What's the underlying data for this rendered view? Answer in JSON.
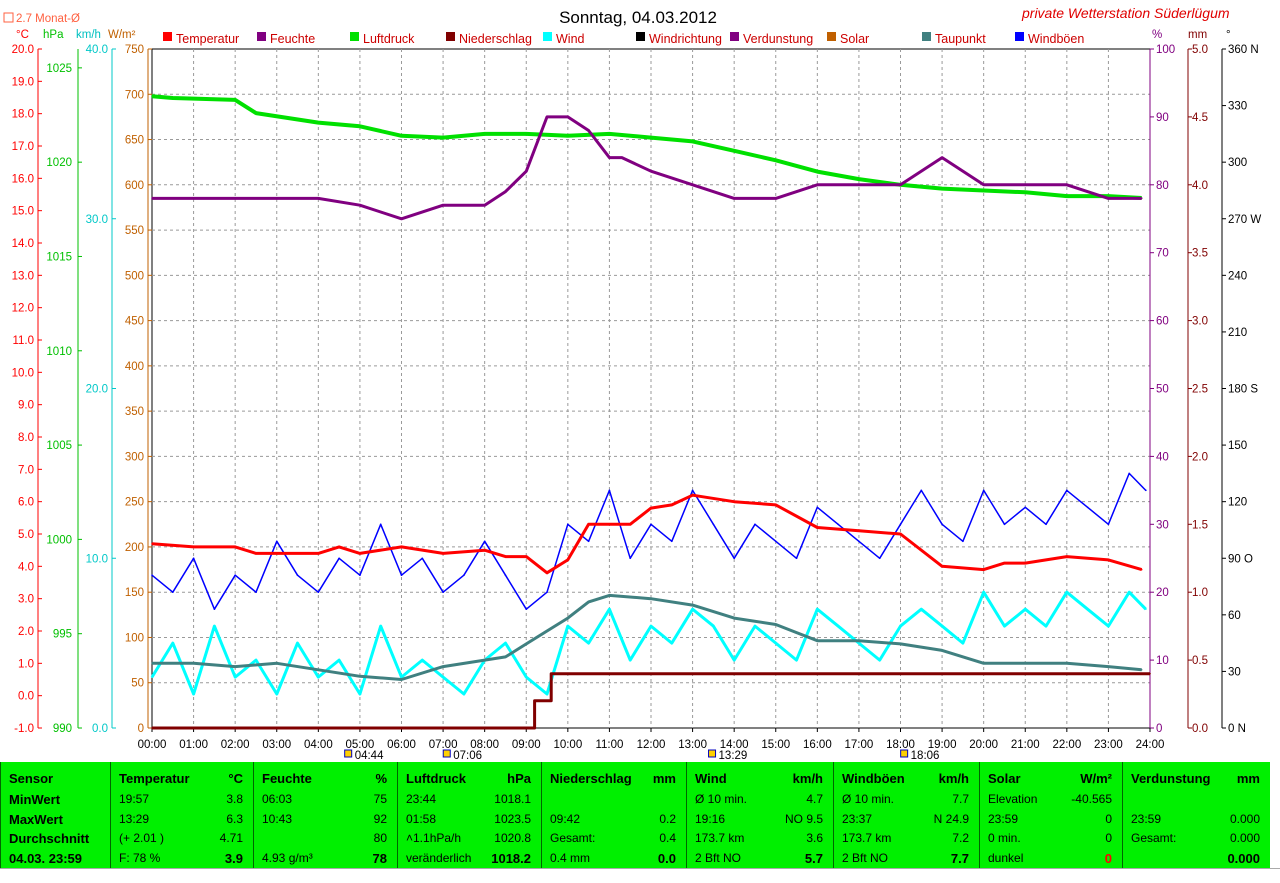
{
  "header": {
    "title": "Sonntag, 04.03.2012",
    "brand": "private Wetterstation Süderlügum",
    "month_avg": "2.7 Monat-Ø"
  },
  "axis_units": {
    "temp": "°C",
    "pressure": "hPa",
    "wind": "km/h",
    "solar": "W/m²",
    "humidity": "%",
    "rain": "mm",
    "direction": "°"
  },
  "legend": [
    {
      "label": "Temperatur",
      "color": "#ff0000"
    },
    {
      "label": "Feuchte",
      "color": "#800080"
    },
    {
      "label": "Luftdruck",
      "color": "#00e000"
    },
    {
      "label": "Niederschlag",
      "color": "#800000"
    },
    {
      "label": "Wind",
      "color": "#00ffff"
    },
    {
      "label": "Windrichtung",
      "color": "#000000"
    },
    {
      "label": "Verdunstung",
      "color": "#800080"
    },
    {
      "label": "Solar",
      "color": "#c06000"
    },
    {
      "label": "Taupunkt",
      "color": "#408080"
    },
    {
      "label": "Windböen",
      "color": "#0000ff"
    }
  ],
  "axes": {
    "temp_ticks": [
      "20.0",
      "19.0",
      "18.0",
      "17.0",
      "16.0",
      "15.0",
      "14.0",
      "13.0",
      "12.0",
      "11.0",
      "10.0",
      "9.0",
      "8.0",
      "7.0",
      "6.0",
      "5.0",
      "4.0",
      "3.0",
      "2.0",
      "1.0",
      "0.0",
      "-1.0"
    ],
    "pressure_ticks": [
      "1025",
      "1020",
      "1015",
      "1010",
      "1005",
      "1000",
      "995",
      "990"
    ],
    "wind_ticks": [
      "40.0",
      "30.0",
      "20.0",
      "10.0",
      "0.0"
    ],
    "solar_ticks": [
      "750",
      "700",
      "650",
      "600",
      "550",
      "500",
      "450",
      "400",
      "350",
      "300",
      "250",
      "200",
      "150",
      "100",
      "50",
      "0"
    ],
    "humidity_ticks": [
      "100",
      "90",
      "80",
      "70",
      "60",
      "50",
      "40",
      "30",
      "20",
      "10",
      "0"
    ],
    "rain_ticks": [
      "5.0",
      "4.5",
      "4.0",
      "3.5",
      "3.0",
      "2.5",
      "2.0",
      "1.5",
      "1.0",
      "0.5",
      "0.0"
    ],
    "direction_ticks": [
      "360 N",
      "330",
      "300",
      "270 W",
      "240",
      "210",
      "180 S",
      "150",
      "120",
      "90 O",
      "60",
      "30",
      "0   N"
    ],
    "time_ticks": [
      "00:00",
      "01:00",
      "02:00",
      "03:00",
      "04:00",
      "05:00",
      "06:00",
      "07:00",
      "08:00",
      "09:00",
      "10:00",
      "11:00",
      "12:00",
      "13:00",
      "14:00",
      "15:00",
      "16:00",
      "17:00",
      "18:00",
      "19:00",
      "20:00",
      "21:00",
      "22:00",
      "23:00",
      "24:00"
    ],
    "events": [
      {
        "label": "04:44",
        "hour": 4.73
      },
      {
        "label": "07:06",
        "hour": 7.1
      },
      {
        "label": "13:29",
        "hour": 13.48
      },
      {
        "label": "18:06",
        "hour": 18.1
      }
    ]
  },
  "chart_data": {
    "type": "line",
    "x_unit": "hour",
    "series": [
      {
        "name": "Temperatur",
        "unit": "°C",
        "color": "#ff0000",
        "x": [
          0,
          1,
          2,
          2.5,
          3,
          4,
          4.5,
          5,
          6,
          7,
          8,
          8.5,
          9,
          9.5,
          10,
          10.5,
          11,
          11.5,
          12,
          12.5,
          13,
          14,
          15,
          16,
          17,
          18,
          19,
          20,
          20.5,
          21,
          22,
          23,
          23.8
        ],
        "y": [
          4.7,
          4.6,
          4.6,
          4.4,
          4.4,
          4.4,
          4.6,
          4.4,
          4.6,
          4.4,
          4.5,
          4.3,
          4.3,
          3.8,
          4.2,
          5.3,
          5.3,
          5.3,
          5.8,
          5.9,
          6.2,
          6.0,
          5.9,
          5.2,
          5.1,
          5.0,
          4.0,
          3.9,
          4.1,
          4.1,
          4.3,
          4.2,
          3.9
        ]
      },
      {
        "name": "Feuchte",
        "unit": "%",
        "color": "#800080",
        "x": [
          0,
          1,
          2,
          3,
          4,
          5,
          5.5,
          6,
          7,
          8,
          8.5,
          9,
          9.5,
          10,
          10.5,
          11,
          11.3,
          12,
          13,
          14,
          15,
          16,
          17,
          18,
          19,
          20,
          21,
          22,
          23,
          23.8
        ],
        "y": [
          78,
          78,
          78,
          78,
          78,
          77,
          76,
          75,
          77,
          77,
          79,
          82,
          90,
          90,
          88,
          84,
          84,
          82,
          80,
          78,
          78,
          80,
          80,
          80,
          84,
          80,
          80,
          80,
          78,
          78
        ]
      },
      {
        "name": "Luftdruck",
        "unit": "hPa",
        "color": "#00e000",
        "x": [
          0,
          0.5,
          2,
          2.5,
          4,
          5,
          6,
          7,
          8,
          9,
          10,
          11,
          12,
          13,
          14,
          15,
          16,
          17,
          18,
          19,
          20,
          21,
          22,
          23,
          23.8
        ],
        "y": [
          1023.5,
          1023.4,
          1023.3,
          1022.6,
          1022.1,
          1021.9,
          1021.4,
          1021.3,
          1021.5,
          1021.5,
          1021.4,
          1021.5,
          1021.3,
          1021.1,
          1020.6,
          1020.1,
          1019.5,
          1019.1,
          1018.8,
          1018.6,
          1018.5,
          1018.4,
          1018.2,
          1018.2,
          1018.1
        ]
      },
      {
        "name": "Taupunkt",
        "unit": "°C",
        "color": "#408080",
        "x": [
          0,
          1,
          2,
          3,
          4,
          5,
          6,
          7,
          8,
          8.5,
          9,
          9.5,
          10,
          10.5,
          11,
          12,
          13,
          14,
          15,
          16,
          17,
          18,
          19,
          20,
          21,
          22,
          23,
          23.8
        ],
        "y": [
          1.0,
          1.0,
          0.9,
          1.0,
          0.8,
          0.6,
          0.5,
          0.9,
          1.1,
          1.2,
          1.6,
          2.0,
          2.4,
          2.9,
          3.1,
          3.0,
          2.8,
          2.4,
          2.2,
          1.7,
          1.7,
          1.6,
          1.4,
          1.0,
          1.0,
          1.0,
          0.9,
          0.8
        ]
      },
      {
        "name": "Wind",
        "unit": "km/h",
        "color": "#00ffff",
        "x": [
          0,
          0.5,
          1,
          1.5,
          2,
          2.5,
          3,
          3.5,
          4,
          4.5,
          5,
          5.5,
          6,
          6.5,
          7,
          7.5,
          8,
          8.5,
          9,
          9.5,
          10,
          10.5,
          11,
          11.5,
          12,
          12.5,
          13,
          13.5,
          14,
          14.5,
          15,
          15.5,
          16,
          16.5,
          17,
          17.5,
          18,
          18.5,
          19,
          19.5,
          20,
          20.5,
          21,
          21.5,
          22,
          22.5,
          23,
          23.5,
          23.9
        ],
        "y": [
          3,
          5,
          2,
          6,
          3,
          4,
          2,
          5,
          3,
          4,
          2,
          6,
          3,
          4,
          3,
          2,
          4,
          5,
          3,
          2,
          6,
          5,
          7,
          4,
          6,
          5,
          7,
          6,
          4,
          6,
          5,
          4,
          7,
          6,
          5,
          4,
          6,
          7,
          6,
          5,
          8,
          6,
          7,
          6,
          8,
          7,
          6,
          8,
          7
        ]
      },
      {
        "name": "Windböen",
        "unit": "km/h",
        "color": "#0000ff",
        "x": [
          0,
          0.5,
          1,
          1.5,
          2,
          2.5,
          3,
          3.5,
          4,
          4.5,
          5,
          5.5,
          6,
          6.5,
          7,
          7.5,
          8,
          8.5,
          9,
          9.5,
          10,
          10.5,
          11,
          11.5,
          12,
          12.5,
          13,
          13.5,
          14,
          14.5,
          15,
          15.5,
          16,
          16.5,
          17,
          17.5,
          18,
          18.5,
          19,
          19.5,
          20,
          20.5,
          21,
          21.5,
          22,
          22.5,
          23,
          23.5,
          23.9
        ],
        "y": [
          9,
          8,
          10,
          7,
          9,
          8,
          11,
          9,
          8,
          10,
          9,
          12,
          9,
          10,
          8,
          9,
          11,
          9,
          7,
          8,
          12,
          11,
          14,
          10,
          12,
          11,
          14,
          12,
          10,
          12,
          11,
          10,
          13,
          12,
          11,
          10,
          12,
          14,
          12,
          11,
          14,
          12,
          13,
          12,
          14,
          13,
          12,
          15,
          14
        ]
      },
      {
        "name": "Niederschlag",
        "unit": "mm",
        "color": "#800000",
        "x": [
          0,
          9.2,
          9.2,
          9.6,
          9.6,
          24
        ],
        "y": [
          0,
          0,
          0.2,
          0.2,
          0.4,
          0.4
        ]
      }
    ],
    "ranges": {
      "temp": [
        -1,
        20
      ],
      "pressure": [
        990,
        1026
      ],
      "wind": [
        0,
        40
      ],
      "humidity": [
        0,
        100
      ],
      "rain": [
        0,
        5
      ],
      "x": [
        0,
        24
      ]
    },
    "grid": true,
    "legend_position": "top"
  },
  "table": [
    {
      "head": "Sensor",
      "unit": "",
      "rows": [
        {
          "a": "MinWert",
          "b": ""
        },
        {
          "a": "MaxWert",
          "b": ""
        },
        {
          "a": "Durchschnitt",
          "b": ""
        },
        {
          "a": "04.03. 23:59",
          "b": ""
        }
      ]
    },
    {
      "head": "Temperatur",
      "unit": "°C",
      "rows": [
        {
          "a": "19:57",
          "b": "3.8"
        },
        {
          "a": "13:29",
          "b": "6.3"
        },
        {
          "a": "(+ 2.01 )",
          "b": "4.71"
        },
        {
          "a": "F: 78 %",
          "b": "3.9",
          "big": true
        }
      ]
    },
    {
      "head": "Feuchte",
      "unit": "%",
      "rows": [
        {
          "a": "06:03",
          "b": "75"
        },
        {
          "a": "10:43",
          "b": "92"
        },
        {
          "a": "",
          "b": "80"
        },
        {
          "a": "4.93 g/m³",
          "b": "78",
          "big": true
        }
      ]
    },
    {
      "head": "Luftdruck",
      "unit": "hPa",
      "rows": [
        {
          "a": "23:44",
          "b": "1018.1"
        },
        {
          "a": "01:58",
          "b": "1023.5"
        },
        {
          "a": "˄1.1hPa/h",
          "b": "1020.8"
        },
        {
          "a": "veränderlich",
          "b": "1018.2",
          "big": true
        }
      ]
    },
    {
      "head": "Niederschlag",
      "unit": "mm",
      "rows": [
        {
          "a": "",
          "b": ""
        },
        {
          "a": "09:42",
          "b": "0.2"
        },
        {
          "a": "Gesamt:",
          "b": "0.4"
        },
        {
          "a": "0.4 mm",
          "b": "0.0",
          "big": true
        }
      ]
    },
    {
      "head": "Wind",
      "unit": "km/h",
      "rows": [
        {
          "a": "Ø 10 min.",
          "b": "4.7"
        },
        {
          "a": "19:16",
          "b": "NO 9.5"
        },
        {
          "a": "173.7 km",
          "b": "3.6"
        },
        {
          "a": "2 Bft NO",
          "b": "5.7",
          "big": true
        }
      ]
    },
    {
      "head": "Windböen",
      "unit": "km/h",
      "rows": [
        {
          "a": "Ø 10 min.",
          "b": "7.7"
        },
        {
          "a": "23:37",
          "b": "N 24.9"
        },
        {
          "a": "173.7 km",
          "b": "7.2"
        },
        {
          "a": "2 Bft NO",
          "b": "7.7",
          "big": true
        }
      ]
    },
    {
      "head": "Solar",
      "unit": "W/m²",
      "rows": [
        {
          "a": "Elevation",
          "b": "-40.565"
        },
        {
          "a": "23:59",
          "b": "0"
        },
        {
          "a": "0 min.",
          "b": "0"
        },
        {
          "a": "dunkel",
          "b": "0",
          "red": true
        }
      ]
    },
    {
      "head": "Verdunstung",
      "unit": "mm",
      "rows": [
        {
          "a": "",
          "b": ""
        },
        {
          "a": "23:59",
          "b": "0.000"
        },
        {
          "a": "Gesamt:",
          "b": "0.000"
        },
        {
          "a": "",
          "b": "0.000",
          "big": true
        }
      ]
    }
  ]
}
